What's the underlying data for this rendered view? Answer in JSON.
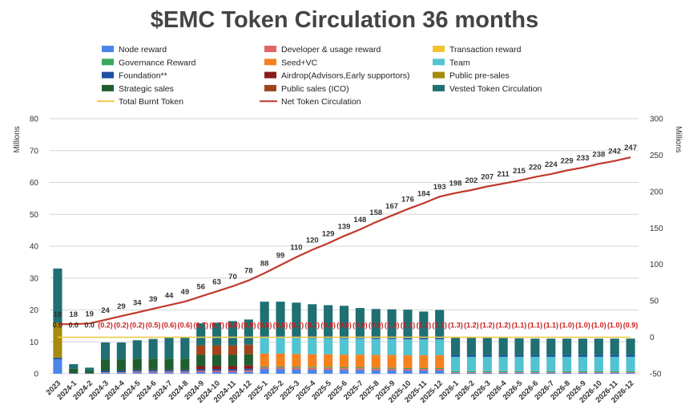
{
  "chart_data": {
    "type": "bar",
    "stacked": true,
    "title": "$EMC Token Circulation 36 months",
    "ylabel_left": "Millions",
    "ylabel_right": "Millions",
    "ylim_left": [
      0,
      80
    ],
    "ylim_right": [
      -50,
      300
    ],
    "yticks_left": [
      "0",
      "10",
      "20",
      "30",
      "40",
      "50",
      "60",
      "70",
      "80"
    ],
    "yticks_right": [
      "-50",
      "0",
      "50",
      "100",
      "150",
      "200",
      "250",
      "300"
    ],
    "grid": true,
    "legend_position": "top",
    "categories": [
      "2023",
      "2024-1",
      "2024-2",
      "2024-3",
      "2024-4",
      "2024-5",
      "2024-6",
      "2024-7",
      "2024-8",
      "2024-9",
      "2024-10",
      "2024-11",
      "2024-12",
      "2025-1",
      "2025-2",
      "2025-3",
      "2025-4",
      "2025-5",
      "2025-6",
      "2025-7",
      "2025-8",
      "2025-9",
      "2025-10",
      "2025-11",
      "2025-12",
      "2026-1",
      "2026-2",
      "2026-3",
      "2026-4",
      "2026-5",
      "2026-6",
      "2026-7",
      "2026-8",
      "2026-9",
      "2026-10",
      "2026-11",
      "2026-12"
    ],
    "legend": [
      {
        "name": "Node reward",
        "color": "#4a86e8",
        "kind": "bar"
      },
      {
        "name": "Developer & usage reward",
        "color": "#e06666",
        "kind": "bar"
      },
      {
        "name": "Transaction reward",
        "color": "#f1c232",
        "kind": "bar"
      },
      {
        "name": "Governance Reward",
        "color": "#38a95c",
        "kind": "bar"
      },
      {
        "name": "Seed+VC",
        "color": "#f5821f",
        "kind": "bar"
      },
      {
        "name": "Team",
        "color": "#52c3d0",
        "kind": "bar"
      },
      {
        "name": "Foundation**",
        "color": "#1f4fa3",
        "kind": "bar"
      },
      {
        "name": "Airdrop(Advisors,Early supportors)",
        "color": "#8b1a1a",
        "kind": "bar"
      },
      {
        "name": "Public pre-sales",
        "color": "#a58a0c",
        "kind": "bar"
      },
      {
        "name": "Strategic sales",
        "color": "#215e2f",
        "kind": "bar"
      },
      {
        "name": "Public sales (ICO)",
        "color": "#a0451a",
        "kind": "bar"
      },
      {
        "name": "Vested Token Circulation",
        "color": "#1f6f73",
        "kind": "bar"
      },
      {
        "name": "Total Burnt Token",
        "color": "#f2c94c",
        "kind": "line"
      },
      {
        "name": "Net Token Circulation",
        "color": "#c0392b",
        "kind": "line"
      }
    ],
    "series": [
      {
        "name": "Node reward",
        "values": [
          4.5,
          0.1,
          0.1,
          0.3,
          0.3,
          0.4,
          0.4,
          0.4,
          0.4,
          0.5,
          0.5,
          0.5,
          0.6,
          1.5,
          1.5,
          1.4,
          1.3,
          1.3,
          1.2,
          1.2,
          1.1,
          1.1,
          1.0,
          1.0,
          1.0,
          0.3,
          0.3,
          0.3,
          0.3,
          0.3,
          0.3,
          0.3,
          0.3,
          0.3,
          0.3,
          0.3,
          0.3
        ]
      },
      {
        "name": "Developer & usage reward",
        "values": [
          0,
          0,
          0,
          0.2,
          0.2,
          0.3,
          0.3,
          0.3,
          0.3,
          0.4,
          0.4,
          0.4,
          0.5,
          0.5,
          0.5,
          0.5,
          0.5,
          0.5,
          0.5,
          0.5,
          0.5,
          0.5,
          0.5,
          0.5,
          0.5,
          0.2,
          0.2,
          0.2,
          0.2,
          0.2,
          0.2,
          0.2,
          0.2,
          0.2,
          0.2,
          0.2,
          0.2
        ]
      },
      {
        "name": "Transaction reward",
        "values": [
          0,
          0,
          0,
          0,
          0,
          0,
          0,
          0,
          0,
          0,
          0,
          0,
          0,
          0,
          0,
          0,
          0,
          0,
          0,
          0,
          0,
          0,
          0,
          0,
          0,
          0,
          0,
          0,
          0,
          0,
          0,
          0,
          0,
          0,
          0,
          0,
          0
        ]
      },
      {
        "name": "Governance Reward",
        "values": [
          0,
          0,
          0,
          0,
          0,
          0,
          0,
          0,
          0,
          0,
          0,
          0,
          0,
          0.3,
          0.3,
          0.3,
          0.3,
          0.3,
          0.3,
          0.3,
          0.3,
          0.3,
          0.3,
          0.3,
          0.3,
          0.3,
          0.3,
          0.3,
          0.3,
          0.3,
          0.3,
          0.3,
          0.3,
          0.3,
          0.3,
          0.3,
          0.3
        ]
      },
      {
        "name": "Seed+VC",
        "values": [
          0,
          0,
          0,
          0,
          0,
          0,
          0,
          0,
          0,
          0,
          0,
          0,
          0,
          4.0,
          4.0,
          4.0,
          4.0,
          4.0,
          4.0,
          4.0,
          4.0,
          4.0,
          4.0,
          4.0,
          4.0,
          0,
          0,
          0,
          0,
          0,
          0,
          0,
          0,
          0,
          0,
          0,
          0
        ]
      },
      {
        "name": "Team",
        "values": [
          0,
          0,
          0,
          0,
          0,
          0,
          0,
          0,
          0,
          0,
          0,
          0,
          0,
          5.0,
          5.0,
          5.0,
          5.0,
          5.0,
          5.0,
          5.0,
          5.0,
          5.0,
          5.0,
          5.0,
          5.0,
          4.5,
          4.5,
          4.5,
          4.5,
          4.5,
          4.5,
          4.5,
          4.5,
          4.5,
          4.5,
          4.5,
          4.5
        ]
      },
      {
        "name": "Foundation**",
        "values": [
          0.5,
          0,
          0,
          0.5,
          0.5,
          0.5,
          0.5,
          0.5,
          0.5,
          0.5,
          0.5,
          0.5,
          0.5,
          0.5,
          0.5,
          0.5,
          0.5,
          0.5,
          0.5,
          0.5,
          0.5,
          0.5,
          0.5,
          0.5,
          0.5,
          0.5,
          0.5,
          0.5,
          0.5,
          0.5,
          0.5,
          0.5,
          0.5,
          0.5,
          0.5,
          0.5,
          0.5
        ]
      },
      {
        "name": "Airdrop(Advisors,Early supportors)",
        "values": [
          0,
          0,
          0,
          0,
          0,
          0,
          0,
          0,
          0,
          1.0,
          1.0,
          1.0,
          1.0,
          0,
          0,
          0,
          0,
          0,
          0,
          0,
          0,
          0,
          0,
          0,
          0,
          0,
          0,
          0,
          0,
          0,
          0,
          0,
          0,
          0,
          0,
          0,
          0
        ]
      },
      {
        "name": "Public pre-sales",
        "values": [
          11.0,
          0,
          0,
          0,
          0,
          0,
          0,
          0,
          0,
          0,
          0,
          0,
          0,
          0,
          0,
          0,
          0,
          0,
          0,
          0,
          0,
          0,
          0,
          0,
          0,
          0,
          0,
          0,
          0,
          0,
          0,
          0,
          0,
          0,
          0,
          0,
          0
        ]
      },
      {
        "name": "Strategic sales",
        "values": [
          0,
          1.5,
          0.8,
          3.5,
          3.5,
          3.5,
          3.5,
          3.5,
          3.5,
          3.5,
          3.5,
          3.5,
          3.5,
          0,
          0,
          0,
          0,
          0,
          0,
          0,
          0,
          0,
          0,
          0,
          0,
          0,
          0,
          0,
          0,
          0,
          0,
          0,
          0,
          0,
          0,
          0,
          0
        ]
      },
      {
        "name": "Public sales (ICO)",
        "values": [
          0,
          0,
          0,
          0,
          0,
          0,
          0,
          0,
          0,
          3.0,
          3.0,
          3.0,
          3.0,
          0,
          0,
          0,
          0,
          0,
          0,
          0,
          0,
          0,
          0,
          0,
          0,
          0,
          0,
          0,
          0,
          0,
          0,
          0,
          0,
          0,
          0,
          0,
          0
        ]
      },
      {
        "name": "Vested Token Circulation",
        "values": [
          17.0,
          1.4,
          1.0,
          5.3,
          5.3,
          5.8,
          6.2,
          6.6,
          6.8,
          6.9,
          7.1,
          7.6,
          7.9,
          10.8,
          10.8,
          10.6,
          10.2,
          9.9,
          9.8,
          9.1,
          8.9,
          8.8,
          8.8,
          8.2,
          8.7,
          5.5,
          5.5,
          5.4,
          5.4,
          5.3,
          5.2,
          5.2,
          5.2,
          5.2,
          5.2,
          5.2,
          5.2
        ]
      }
    ],
    "lines": [
      {
        "name": "Total Burnt Token",
        "axis": "right",
        "values": [
          0,
          0,
          0,
          0.2,
          0.2,
          0.2,
          0.5,
          0.6,
          0.6,
          0.7,
          0.7,
          0.8,
          0.9,
          0.6,
          0.6,
          0.7,
          0.7,
          0.8,
          0.8,
          0.9,
          0.9,
          1.0,
          1.1,
          1.2,
          1.3,
          1.3,
          1.2,
          1.2,
          1.2,
          1.1,
          1.1,
          1.1,
          1.0,
          1.0,
          1.0,
          1.0,
          0.9
        ]
      },
      {
        "name": "Net Token Circulation",
        "axis": "right",
        "values": [
          18,
          18,
          19,
          24,
          29,
          34,
          39,
          44,
          49,
          56,
          63,
          70,
          78,
          88,
          99,
          110,
          120,
          129,
          139,
          148,
          158,
          167,
          176,
          184,
          193,
          198,
          202,
          207,
          211,
          215,
          220,
          224,
          229,
          233,
          238,
          242,
          247
        ]
      }
    ],
    "net_labels": [
      "18",
      "18",
      "19",
      "24",
      "29",
      "34",
      "39",
      "44",
      "49",
      "56",
      "63",
      "70",
      "78",
      "88",
      "99",
      "110",
      "120",
      "129",
      "139",
      "148",
      "158",
      "167",
      "176",
      "184",
      "193",
      "198",
      "202",
      "207",
      "211",
      "215",
      "220",
      "224",
      "229",
      "233",
      "238",
      "242",
      "247"
    ],
    "burn_labels": [
      "0.0",
      "0.0",
      "0.0",
      "(0.2)",
      "(0.2)",
      "(0.2)",
      "(0.5)",
      "(0.6)",
      "(0.6)",
      "(0.7)",
      "(0.7)",
      "(0.8)",
      "(0.9)",
      "(0.6)",
      "(0.6)",
      "(0.7)",
      "(0.7)",
      "(0.8)",
      "(0.8)",
      "(0.9)",
      "(0.9)",
      "(1.0)",
      "(1.1)",
      "(1.2)",
      "(1.3)",
      "(1.3)",
      "(1.2)",
      "(1.2)",
      "(1.2)",
      "(1.1)",
      "(1.1)",
      "(1.1)",
      "(1.0)",
      "(1.0)",
      "(1.0)",
      "(1.0)",
      "(0.9)"
    ]
  }
}
